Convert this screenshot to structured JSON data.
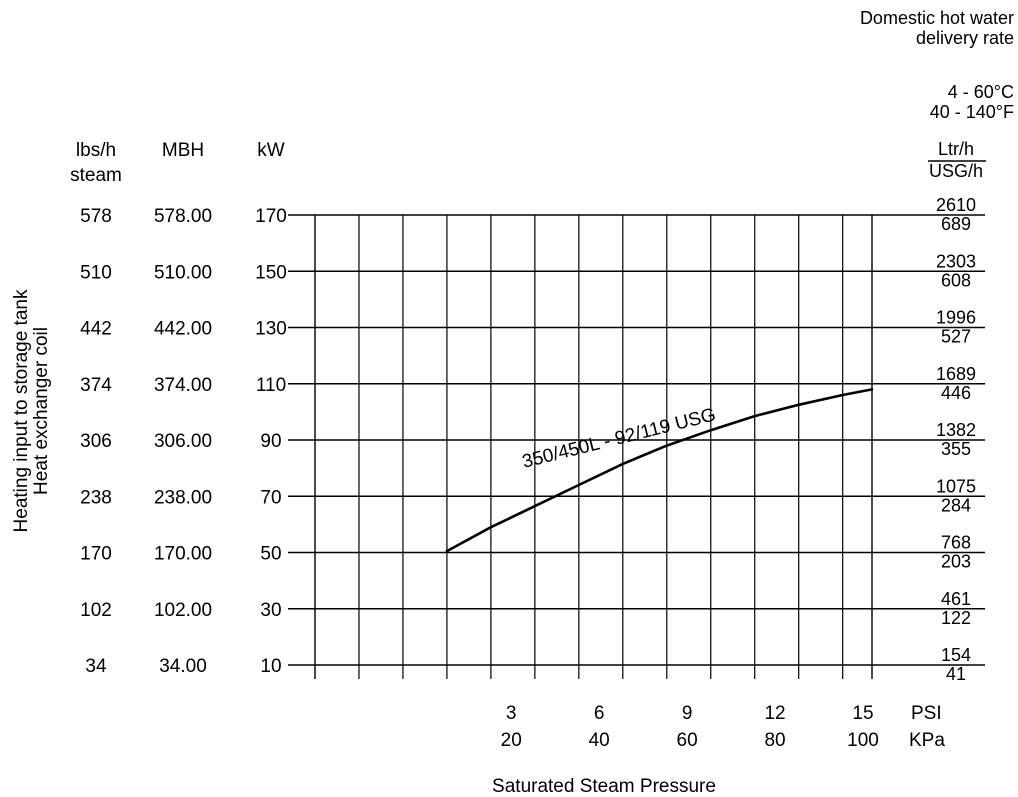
{
  "chart_data": {
    "type": "line",
    "title": "",
    "curve_label": "350/450L - 92/119 USG",
    "left_axis": {
      "title_lines": [
        "Heating input to storage tank",
        "Heat exchanger coil"
      ],
      "columns": [
        {
          "header": [
            "lbs/h",
            "steam"
          ],
          "ticks": [
            "578",
            "510",
            "442",
            "374",
            "306",
            "238",
            "170",
            "102",
            "34"
          ]
        },
        {
          "header": [
            "MBH"
          ],
          "ticks": [
            "578.00",
            "510.00",
            "442.00",
            "374.00",
            "306.00",
            "238.00",
            "170.00",
            "102.00",
            "34.00"
          ]
        },
        {
          "header": [
            "kW"
          ],
          "ticks": [
            "170",
            "150",
            "130",
            "110",
            "90",
            "70",
            "50",
            "30",
            "10"
          ]
        }
      ],
      "unit": "kW",
      "ylim": [
        10,
        170
      ],
      "tick_values": [
        170,
        150,
        130,
        110,
        90,
        70,
        50,
        30,
        10
      ]
    },
    "right_axis": {
      "title_lines": [
        "Domestic hot water",
        "delivery rate"
      ],
      "range_lines": [
        "4 - 60°C",
        "40 - 140°F"
      ],
      "unit_top": "Ltr/h",
      "unit_bottom": "USG/h",
      "ticks": [
        {
          "ltr": "2610",
          "usg": "689"
        },
        {
          "ltr": "2303",
          "usg": "608"
        },
        {
          "ltr": "1996",
          "usg": "527"
        },
        {
          "ltr": "1689",
          "usg": "446"
        },
        {
          "ltr": "1382",
          "usg": "355"
        },
        {
          "ltr": "1075",
          "usg": "284"
        },
        {
          "ltr": "768",
          "usg": "203"
        },
        {
          "ltr": "461",
          "usg": "122"
        },
        {
          "ltr": "154",
          "usg": "41"
        }
      ]
    },
    "x_axis": {
      "title": "Saturated Steam Pressure",
      "unit_psi": "PSI",
      "unit_kpa": "KPa",
      "xlim": [
        -4,
        15
      ],
      "ticks": [
        {
          "psi": "3",
          "kpa": "20",
          "value": 3
        },
        {
          "psi": "6",
          "kpa": "40",
          "value": 6
        },
        {
          "psi": "9",
          "kpa": "60",
          "value": 9
        },
        {
          "psi": "12",
          "kpa": "80",
          "value": 12
        },
        {
          "psi": "15",
          "kpa": "100",
          "value": 15
        }
      ],
      "vertical_grid_values": [
        -2.5,
        -1,
        0.5,
        2,
        3.5,
        5,
        6.5,
        8,
        9.5,
        11,
        12.5,
        14
      ]
    },
    "grid": true,
    "series": [
      {
        "x_psi": [
          0.5,
          2,
          3.5,
          5,
          6.5,
          8,
          9.5,
          11,
          12.5,
          14,
          15
        ],
        "y_kW": [
          50.5,
          59,
          66.5,
          74,
          81.5,
          88,
          93.5,
          98.5,
          102.5,
          106,
          108
        ]
      }
    ]
  }
}
